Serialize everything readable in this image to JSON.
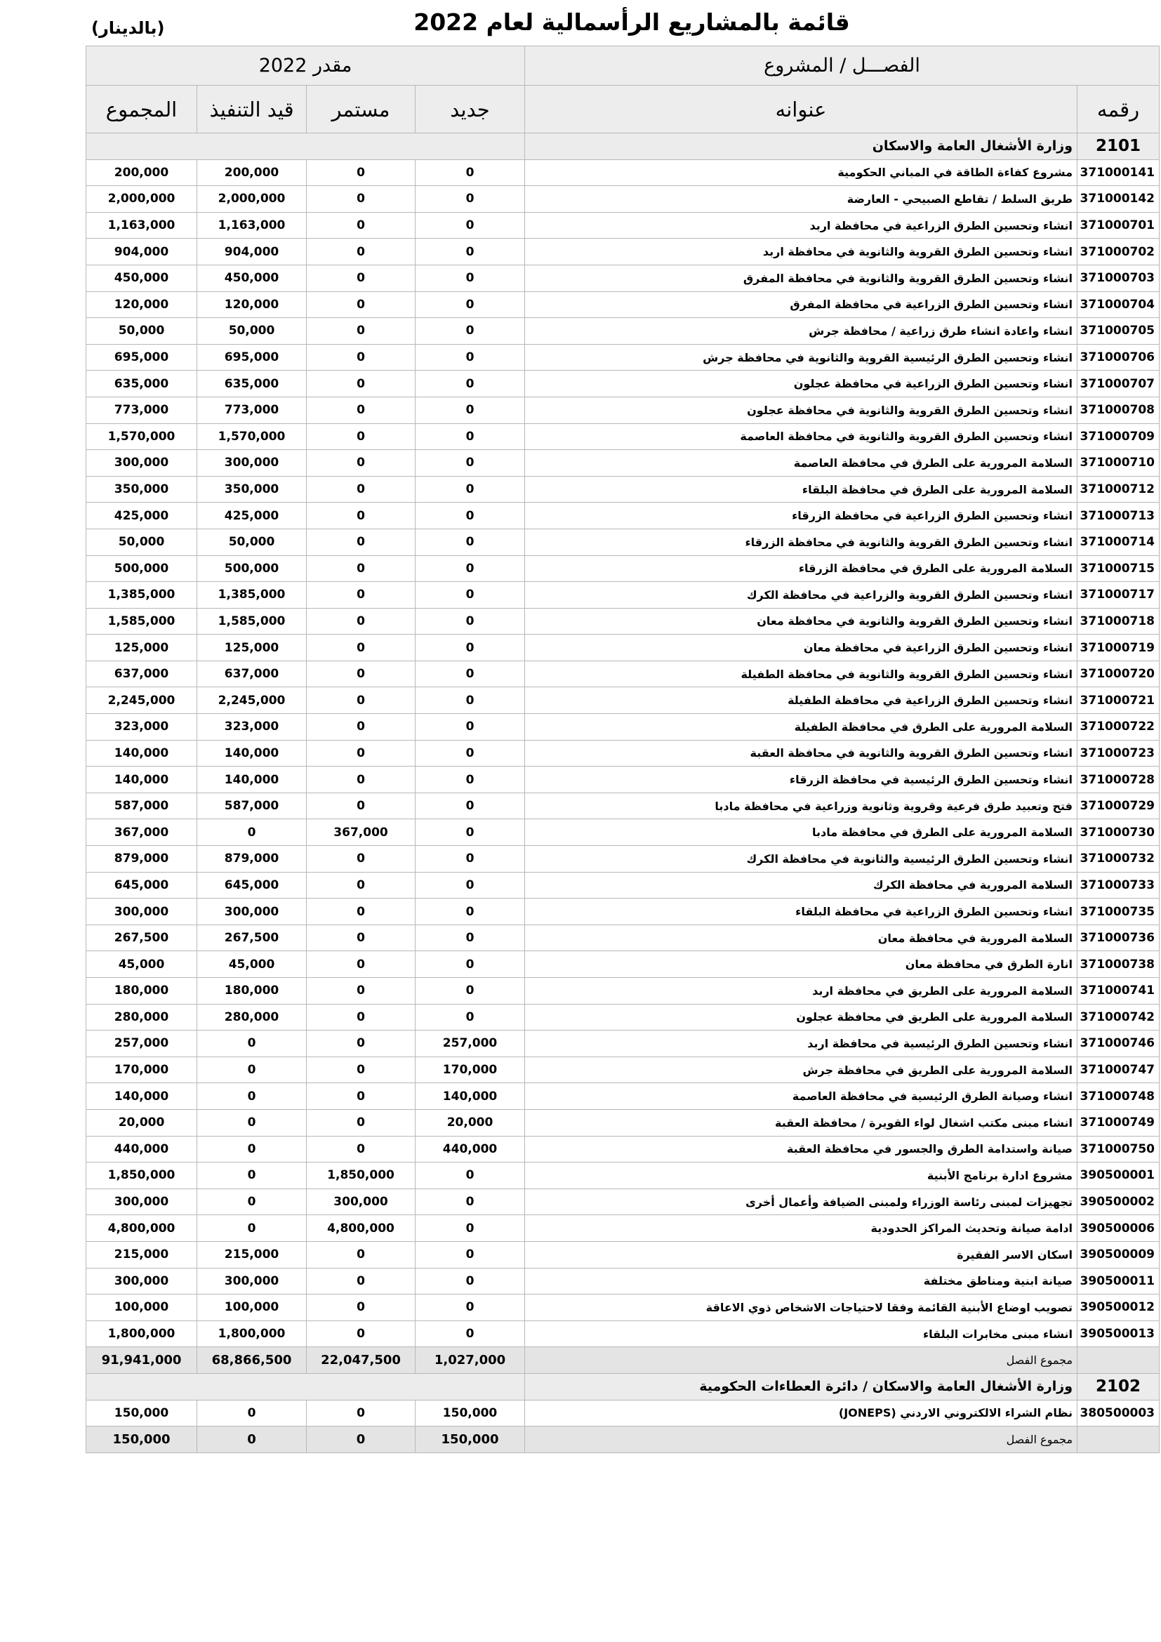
{
  "header": {
    "title": "قائمة بالمشاريع الرأسمالية لعام 2022",
    "unit": "(بالدينار)"
  },
  "table": {
    "group_headers": [
      "الفصـــل / المشروع",
      "مقدر  2022"
    ],
    "columns": [
      "رقمه",
      "عنوانه",
      "جديد",
      "مستمر",
      "قيد التنفيذ",
      "المجموع"
    ],
    "sections": [
      {
        "code": "2101",
        "name": "وزارة الأشغال العامة والاسكان",
        "rows": [
          [
            "371000141",
            "مشروع كفاءة الطاقة في المباني الحكومية",
            "0",
            "0",
            "200,000",
            "200,000"
          ],
          [
            "371000142",
            "طريق السلط / تقاطع الصبيحي - العارضة",
            "0",
            "0",
            "2,000,000",
            "2,000,000"
          ],
          [
            "371000701",
            "انشاء وتحسين الطرق الزراعية في محافظة اربد",
            "0",
            "0",
            "1,163,000",
            "1,163,000"
          ],
          [
            "371000702",
            "انشاء وتحسين الطرق القروية والثانوية في محافظة اربد",
            "0",
            "0",
            "904,000",
            "904,000"
          ],
          [
            "371000703",
            "انشاء وتحسين الطرق القروية والثانوية في محافظة المفرق",
            "0",
            "0",
            "450,000",
            "450,000"
          ],
          [
            "371000704",
            "انشاء وتحسين الطرق الزراعية في محافظة المفرق",
            "0",
            "0",
            "120,000",
            "120,000"
          ],
          [
            "371000705",
            "انشاء واعادة انشاء طرق زراعية / محافظة جرش",
            "0",
            "0",
            "50,000",
            "50,000"
          ],
          [
            "371000706",
            "انشاء وتحسين الطرق الرئيسية القروية والثانوية في محافظة جرش",
            "0",
            "0",
            "695,000",
            "695,000"
          ],
          [
            "371000707",
            "انشاء وتحسين الطرق الزراعية في محافظة عجلون",
            "0",
            "0",
            "635,000",
            "635,000"
          ],
          [
            "371000708",
            "انشاء وتحسين الطرق القروية والثانوية في محافظة عجلون",
            "0",
            "0",
            "773,000",
            "773,000"
          ],
          [
            "371000709",
            "انشاء وتحسين الطرق القروية والثانوية في محافظة العاصمة",
            "0",
            "0",
            "1,570,000",
            "1,570,000"
          ],
          [
            "371000710",
            "السلامة المرورية على الطرق في محافظة العاصمة",
            "0",
            "0",
            "300,000",
            "300,000"
          ],
          [
            "371000712",
            "السلامة المرورية على الطرق في محافظة البلقاء",
            "0",
            "0",
            "350,000",
            "350,000"
          ],
          [
            "371000713",
            "انشاء وتحسين الطرق الزراعية في محافظة الزرقاء",
            "0",
            "0",
            "425,000",
            "425,000"
          ],
          [
            "371000714",
            "انشاء وتحسين الطرق القروية والثانوية في محافظة الزرقاء",
            "0",
            "0",
            "50,000",
            "50,000"
          ],
          [
            "371000715",
            "السلامة المرورية على الطرق في محافظة الزرقاء",
            "0",
            "0",
            "500,000",
            "500,000"
          ],
          [
            "371000717",
            "انشاء وتحسين الطرق القروية والزراعية في محافظة الكرك",
            "0",
            "0",
            "1,385,000",
            "1,385,000"
          ],
          [
            "371000718",
            "انشاء وتحسين الطرق القروية والثانوية في محافظة معان",
            "0",
            "0",
            "1,585,000",
            "1,585,000"
          ],
          [
            "371000719",
            "انشاء وتحسين الطرق الزراعية في محافظة معان",
            "0",
            "0",
            "125,000",
            "125,000"
          ],
          [
            "371000720",
            "انشاء وتحسين الطرق القروية والثانوية في محافظة الطفيلة",
            "0",
            "0",
            "637,000",
            "637,000"
          ],
          [
            "371000721",
            "انشاء وتحسين الطرق الزراعية في محافظة الطفيلة",
            "0",
            "0",
            "2,245,000",
            "2,245,000"
          ],
          [
            "371000722",
            "السلامة المرورية على الطرق في محافظة الطفيلة",
            "0",
            "0",
            "323,000",
            "323,000"
          ],
          [
            "371000723",
            "انشاء وتحسين الطرق القروية والثانوية في محافظة العقبة",
            "0",
            "0",
            "140,000",
            "140,000"
          ],
          [
            "371000728",
            "انشاء وتحسين الطرق الرئيسية في محافظة الزرقاء",
            "0",
            "0",
            "140,000",
            "140,000"
          ],
          [
            "371000729",
            "فتح وتعبيد طرق فرعية وقروية وثانوية وزراعية في محافظة مادبا",
            "0",
            "0",
            "587,000",
            "587,000"
          ],
          [
            "371000730",
            "السلامة المرورية على الطرق في محافظة مادبا",
            "0",
            "367,000",
            "0",
            "367,000"
          ],
          [
            "371000732",
            "انشاء وتحسين الطرق الرئيسية والثانوية في محافظة الكرك",
            "0",
            "0",
            "879,000",
            "879,000"
          ],
          [
            "371000733",
            "السلامة المرورية في محافظة الكرك",
            "0",
            "0",
            "645,000",
            "645,000"
          ],
          [
            "371000735",
            "انشاء وتحسين الطرق الزراعية في محافظة البلقاء",
            "0",
            "0",
            "300,000",
            "300,000"
          ],
          [
            "371000736",
            "السلامة المرورية في محافظة معان",
            "0",
            "0",
            "267,500",
            "267,500"
          ],
          [
            "371000738",
            "انارة الطرق في محافظة معان",
            "0",
            "0",
            "45,000",
            "45,000"
          ],
          [
            "371000741",
            "السلامة المرورية على الطريق في محافظة اربد",
            "0",
            "0",
            "180,000",
            "180,000"
          ],
          [
            "371000742",
            "السلامة المرورية على الطريق في محافظة عجلون",
            "0",
            "0",
            "280,000",
            "280,000"
          ],
          [
            "371000746",
            "انشاء وتحسين الطرق الرئيسية في محافظة اربد",
            "257,000",
            "0",
            "0",
            "257,000"
          ],
          [
            "371000747",
            "السلامة المرورية على الطريق في محافظة جرش",
            "170,000",
            "0",
            "0",
            "170,000"
          ],
          [
            "371000748",
            "انشاء وصيانة الطرق الرئيسية في محافظة العاصمة",
            "140,000",
            "0",
            "0",
            "140,000"
          ],
          [
            "371000749",
            "انشاء مبنى مكتب اشغال لواء القويرة / محافظة العقبة",
            "20,000",
            "0",
            "0",
            "20,000"
          ],
          [
            "371000750",
            "صيانة واستدامة الطرق والجسور في محافظة العقبة",
            "440,000",
            "0",
            "0",
            "440,000"
          ],
          [
            "390500001",
            "مشروع ادارة برنامج الأبنية",
            "0",
            "1,850,000",
            "0",
            "1,850,000"
          ],
          [
            "390500002",
            "تجهيزات لمبنى رئاسة الوزراء ولمبنى الضيافة وأعمال أخرى",
            "0",
            "300,000",
            "0",
            "300,000"
          ],
          [
            "390500006",
            "ادامة صيانة وتحديث المراكز الحدودية",
            "0",
            "4,800,000",
            "0",
            "4,800,000"
          ],
          [
            "390500009",
            "اسكان الاسر الفقيرة",
            "0",
            "0",
            "215,000",
            "215,000"
          ],
          [
            "390500011",
            "صيانة ابنية ومناطق مختلفة",
            "0",
            "0",
            "300,000",
            "300,000"
          ],
          [
            "390500012",
            "تصويب اوضاع الأبنية القائمة وفقا لاحتياجات الاشخاص ذوي الاعاقة",
            "0",
            "0",
            "100,000",
            "100,000"
          ],
          [
            "390500013",
            "انشاء مبنى مخابرات البلقاء",
            "0",
            "0",
            "1,800,000",
            "1,800,000"
          ]
        ],
        "total": {
          "label": "مجموع الفصل",
          "values": [
            "1,027,000",
            "22,047,500",
            "68,866,500",
            "91,941,000"
          ]
        }
      },
      {
        "code": "2102",
        "name": "وزارة الأشغال العامة والاسكان / دائرة العطاءات الحكومية",
        "rows": [
          [
            "380500003",
            "نظام الشراء الالكتروني الاردني (JONEPS)",
            "150,000",
            "0",
            "0",
            "150,000"
          ]
        ],
        "total": {
          "label": "مجموع الفصل",
          "values": [
            "150,000",
            "0",
            "0",
            "150,000"
          ]
        }
      }
    ]
  }
}
